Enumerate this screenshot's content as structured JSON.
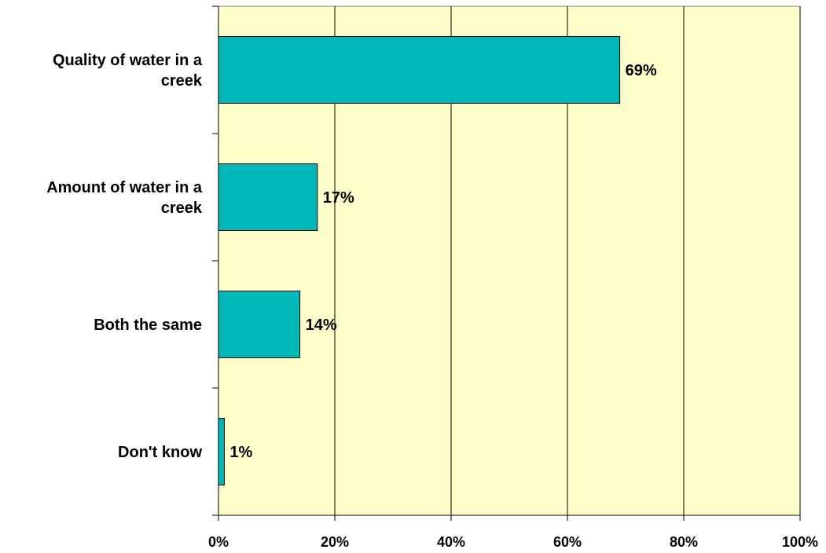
{
  "chart_data": {
    "type": "bar",
    "orientation": "horizontal",
    "categories": [
      [
        "Quality of water in a",
        "creek"
      ],
      [
        "Amount of water in a",
        "creek"
      ],
      [
        "Both the same"
      ],
      [
        "Don't know"
      ]
    ],
    "values": [
      69,
      17,
      14,
      1
    ],
    "data_labels": [
      "69%",
      "17%",
      "14%",
      "1%"
    ],
    "x_ticks": [
      "0%",
      "20%",
      "40%",
      "60%",
      "80%",
      "100%"
    ],
    "xlim": [
      0,
      100
    ],
    "grid": true,
    "legend": "none",
    "title": "",
    "xlabel": "",
    "ylabel": "",
    "colors": {
      "plot_background": "#ffffcc",
      "bar_fill": "#00b8b8",
      "bar_stroke": "#000000",
      "gridline": "#000000",
      "axis": "#000000"
    }
  }
}
